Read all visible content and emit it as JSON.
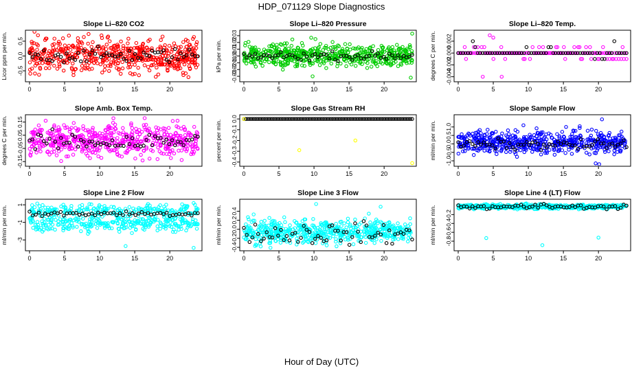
{
  "page": {
    "title": "HDP_071129  Slope Diagnostics",
    "xlabel": "Hour of Day (UTC)"
  },
  "colors": {
    "red": "#ff0000",
    "green": "#00cc00",
    "magenta": "#ff00ff",
    "yellow": "#ffff00",
    "blue": "#0000ff",
    "cyan": "#00ffff",
    "black": "#000000"
  },
  "chart_data": [
    {
      "type": "scatter",
      "title": "Slope Li–820 CO2",
      "ylabel": "Licor ppm per min.",
      "xlim": [
        0,
        24
      ],
      "ylim": [
        -0.8,
        0.8
      ],
      "x_ticks": [
        "0",
        "5",
        "10",
        "15",
        "20"
      ],
      "y_ticks": [
        "-0.5",
        "0.0",
        "0.5"
      ],
      "color": "#ff0000",
      "main_center": 0.0,
      "main_spread": 0.28,
      "black_center": 0.02,
      "black_spread": 0.12,
      "outliers": [
        [
          0.7,
          0.82
        ],
        [
          1.2,
          0.7
        ],
        [
          13.0,
          -0.6
        ],
        [
          15.6,
          -0.65
        ],
        [
          22.3,
          0.55
        ]
      ]
    },
    {
      "type": "scatter",
      "title": "Slope Li–820 Pressure",
      "ylabel": "kPa per min.",
      "xlim": [
        0,
        24
      ],
      "ylim": [
        -0.035,
        0.035
      ],
      "x_ticks": [
        "0",
        "5",
        "10",
        "15",
        "20"
      ],
      "y_ticks": [
        "-0.03",
        "-0.02",
        "-0.01",
        "0.00",
        "0.01",
        "0.02",
        "0.03"
      ],
      "color": "#00cc00",
      "main_center": 0.001,
      "main_spread": 0.008,
      "black_center": 0.0,
      "black_spread": 0.003,
      "outliers": [
        [
          9.6,
          0.027
        ],
        [
          10.2,
          0.025
        ],
        [
          9.8,
          -0.03
        ],
        [
          24.0,
          0.033
        ],
        [
          23.8,
          -0.032
        ]
      ]
    },
    {
      "type": "scatter",
      "title": "Slope Li–820 Temp.",
      "ylabel": "degrees C per min.",
      "xlim": [
        0,
        24
      ],
      "ylim": [
        -0.0045,
        0.0035
      ],
      "x_ticks": [
        "0",
        "5",
        "10",
        "15",
        "20"
      ],
      "y_ticks": [
        "-0.004",
        "-0.002",
        "0.000",
        "0.002"
      ],
      "color": "#ff00ff",
      "quantized": [
        -0.002,
        -0.001,
        0.0,
        0.001,
        0.002
      ],
      "outliers": [
        [
          4.5,
          0.003
        ],
        [
          6.2,
          -0.004
        ],
        [
          3.5,
          -0.004
        ],
        [
          5.0,
          0.0026
        ]
      ]
    },
    {
      "type": "scatter",
      "title": "Slope Amb. Box Temp.",
      "ylabel": "degrees C per min.",
      "xlim": [
        0,
        24
      ],
      "ylim": [
        -0.17,
        0.19
      ],
      "x_ticks": [
        "0",
        "5",
        "10",
        "15",
        "20"
      ],
      "y_ticks": [
        "-0.15",
        "-0.05",
        "0.05",
        "0.15"
      ],
      "color": "#ff00ff",
      "main_center": 0.01,
      "main_spread": 0.06,
      "black_center": 0.0,
      "black_spread": 0.035,
      "outliers": [
        [
          21.1,
          0.16
        ],
        [
          2.3,
          0.16
        ],
        [
          14.5,
          0.14
        ]
      ]
    },
    {
      "type": "scatter",
      "title": "Slope Gas Stream RH",
      "ylabel": "percent per min.",
      "xlim": [
        0,
        24
      ],
      "ylim": [
        -0.42,
        0.02
      ],
      "x_ticks": [
        "0",
        "5",
        "10",
        "15",
        "20"
      ],
      "y_ticks": [
        "-0.4",
        "-0.3",
        "-0.2",
        "-0.1",
        "0.0"
      ],
      "color": "#ffff00",
      "flat": 0.0,
      "outliers": [
        [
          0.0,
          0.0
        ],
        [
          7.9,
          -0.29
        ],
        [
          15.9,
          -0.2
        ],
        [
          24.0,
          -0.41
        ]
      ]
    },
    {
      "type": "scatter",
      "title": "Slope Sample Flow",
      "ylabel": "ml/min per min.",
      "xlim": [
        0,
        24
      ],
      "ylim": [
        -1.2,
        1.6
      ],
      "x_ticks": [
        "0",
        "5",
        "10",
        "15",
        "20"
      ],
      "y_ticks": [
        "-1.0",
        "-0.5",
        "0.0",
        "0.5",
        "1.0"
      ],
      "color": "#0000ff",
      "main_center": 0.1,
      "main_spread": 0.33,
      "black_center": -0.05,
      "black_spread": 0.15,
      "outliers": [
        [
          20.5,
          1.45
        ],
        [
          19.6,
          -1.15
        ],
        [
          20.1,
          -1.2
        ],
        [
          9.3,
          1.1
        ]
      ]
    },
    {
      "type": "scatter",
      "title": "Slope Line 2 Flow",
      "ylabel": "ml/min per min.",
      "xlim": [
        0,
        24
      ],
      "ylim": [
        -4.0,
        1.4
      ],
      "x_ticks": [
        "0",
        "5",
        "10",
        "15",
        "20"
      ],
      "y_ticks": [
        "-3",
        "-1",
        "1"
      ],
      "color": "#00ffff",
      "bands": [
        [
          0.4,
          0.35
        ],
        [
          -1.1,
          0.45
        ]
      ],
      "black_center": 0.0,
      "black_spread": 0.15,
      "outliers": [
        [
          13.7,
          -3.7
        ],
        [
          23.4,
          -3.9
        ],
        [
          23.4,
          1.2
        ],
        [
          1.1,
          1.15
        ]
      ]
    },
    {
      "type": "scatter",
      "title": "Slope Line 3 Flow",
      "ylabel": "ml/min per min.",
      "xlim": [
        0,
        24
      ],
      "ylim": [
        -0.43,
        0.62
      ],
      "x_ticks": [
        "0",
        "5",
        "10",
        "15",
        "20"
      ],
      "y_ticks": [
        "-0.4",
        "-0.2",
        "0.0",
        "0.2",
        "0.4"
      ],
      "color": "#00ffff",
      "main_center": -0.05,
      "main_spread": 0.13,
      "black_center": -0.1,
      "black_spread": 0.12,
      "outliers": [
        [
          10.3,
          0.56
        ],
        [
          19.5,
          0.5
        ],
        [
          2.4,
          -0.38
        ]
      ]
    },
    {
      "type": "scatter",
      "title": "Slope Line 4 (LT) Flow",
      "ylabel": "ml/min per min.",
      "xlim": [
        0,
        24
      ],
      "ylim": [
        -0.97,
        0.1
      ],
      "x_ticks": [
        "0",
        "5",
        "10",
        "15",
        "20"
      ],
      "y_ticks": [
        "-0.8",
        "-0.6",
        "-0.4",
        "-0.2"
      ],
      "color": "#00ffff",
      "main_center": -0.02,
      "main_spread": 0.025,
      "black_center": -0.02,
      "black_spread": 0.03,
      "outliers": [
        [
          4.0,
          -0.73
        ],
        [
          12.0,
          -0.89
        ],
        [
          20.0,
          -0.72
        ]
      ]
    }
  ]
}
